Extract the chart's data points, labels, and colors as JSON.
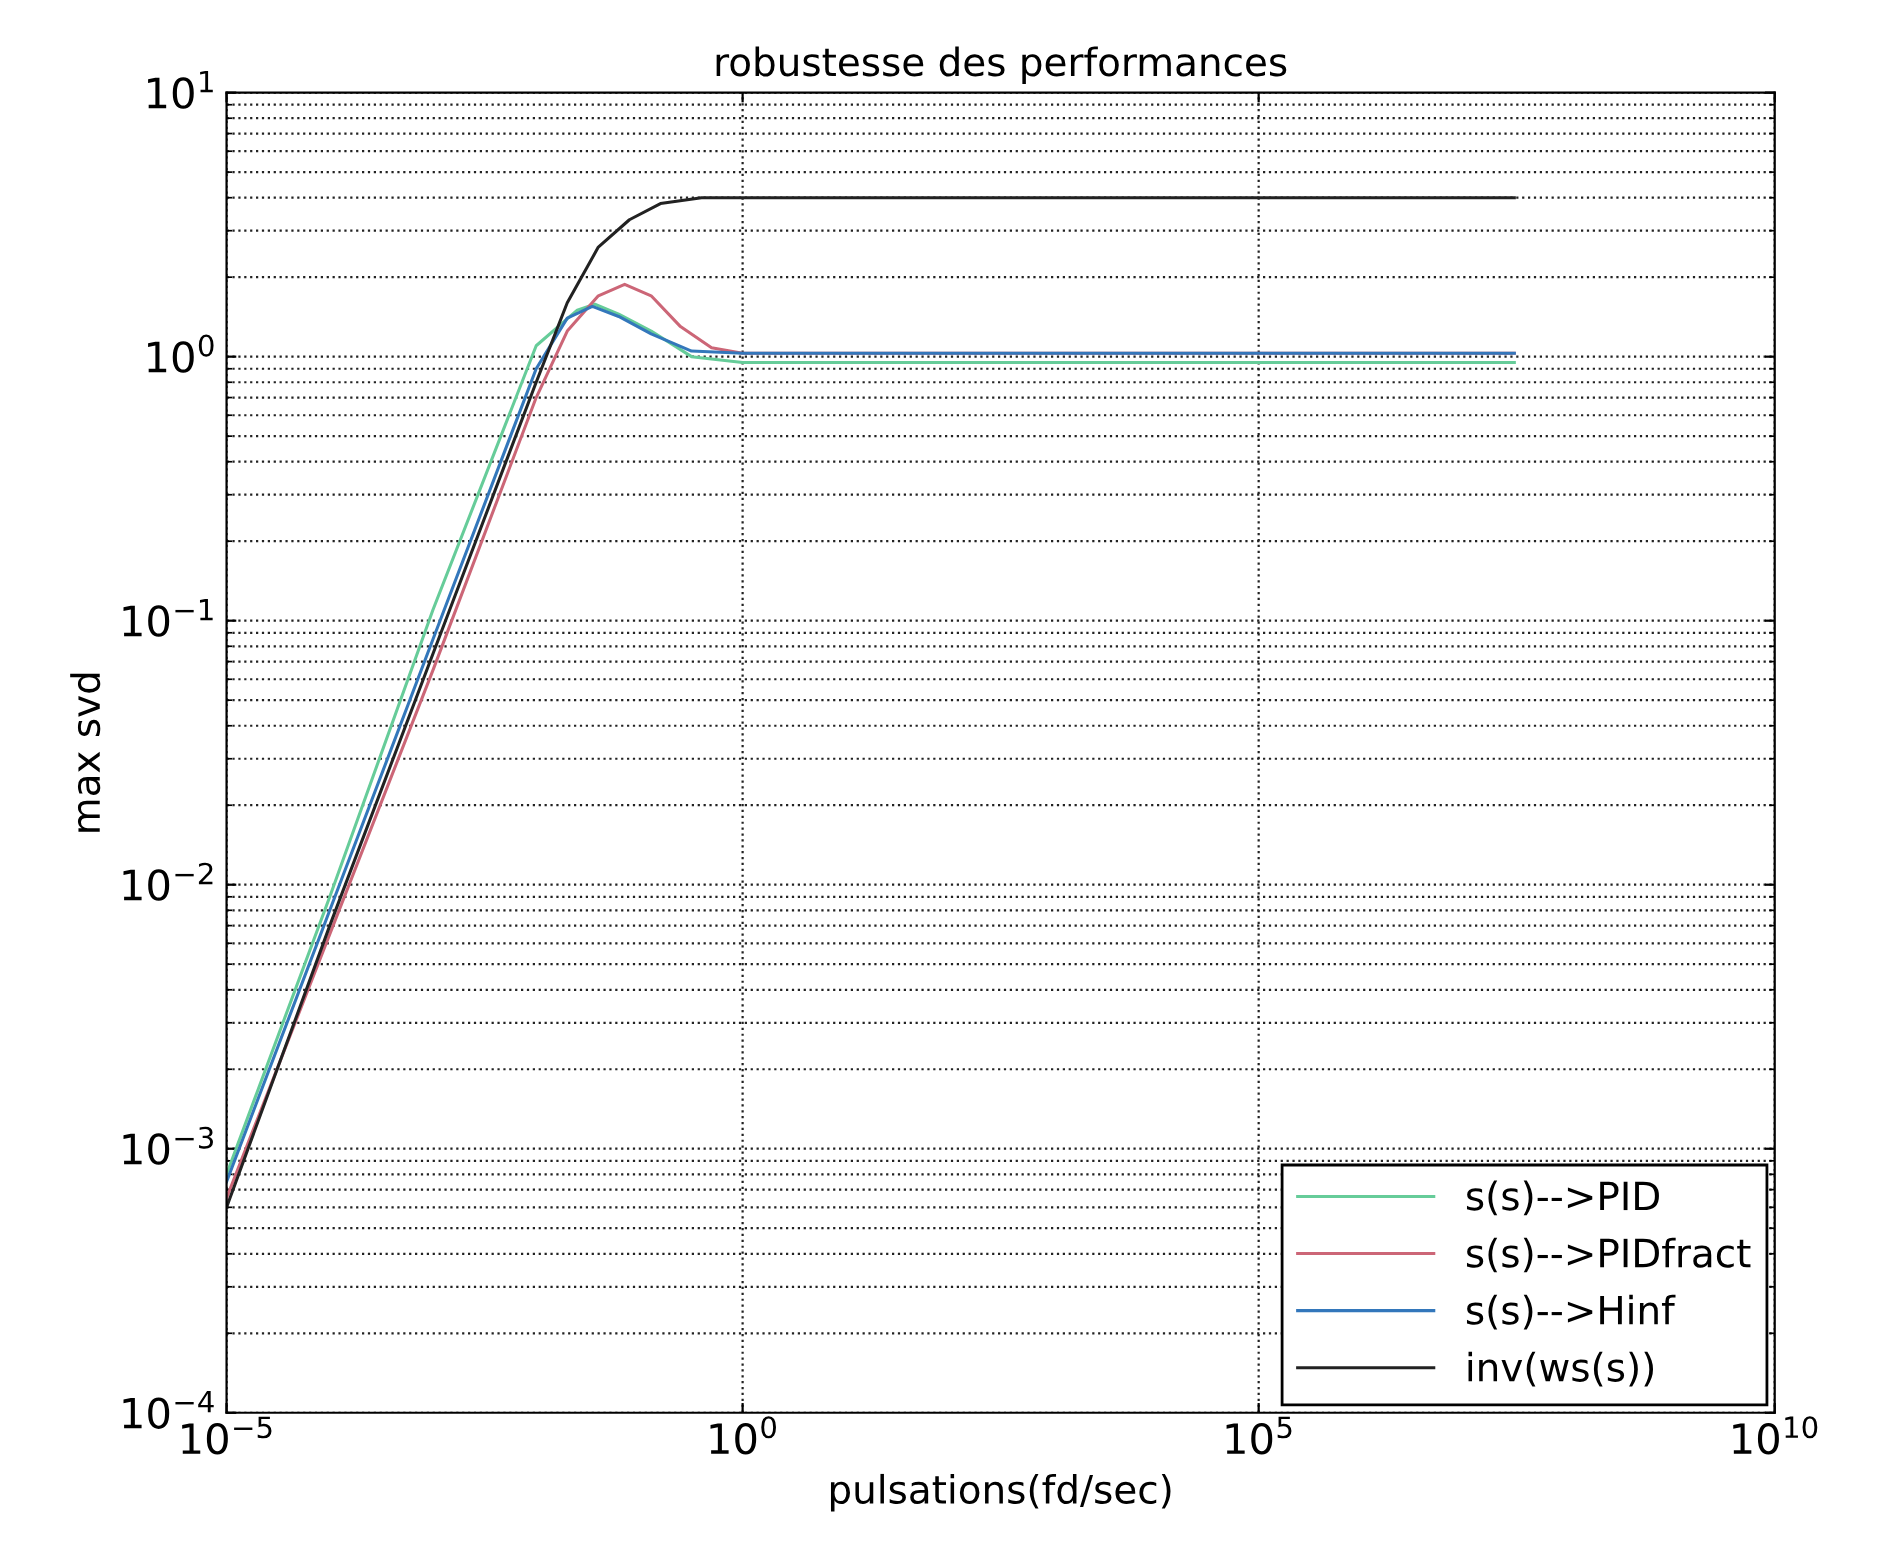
{
  "chart_data": {
    "type": "line",
    "title": "robustesse des performances",
    "xlabel": "pulsations(fd/sec)",
    "ylabel": "max svd",
    "log": "xy",
    "grid": true,
    "legend": "bottom right",
    "line_style": "solid",
    "marker": "none",
    "xlim": [
      1e-05,
      10000000000
    ],
    "ylim": [
      0.0001,
      10
    ],
    "xticks": [
      {
        "value": 1e-05,
        "label": "10$^{−5}$"
      },
      {
        "value": 1,
        "label": "10$^{0}$"
      },
      {
        "value": 100000,
        "label": "10$^{5}$"
      },
      {
        "value": 10000000000,
        "label": "10$^{10}$"
      }
    ],
    "yticks": [
      {
        "value": 0.0001,
        "label": "10$^{−4}$"
      },
      {
        "value": 0.001,
        "label": "10$^{−3}$"
      },
      {
        "value": 0.01,
        "label": "10$^{−2}$"
      },
      {
        "value": 0.1,
        "label": "10$^{−1}$"
      },
      {
        "value": 1,
        "label": "10$^{0}$"
      },
      {
        "value": 10,
        "label": "10$^{1}$"
      }
    ],
    "series": [
      {
        "name": "s(s)-->PID",
        "color": "#66cc99",
        "x": [
          1e-05,
          0.0001,
          0.001,
          0.01,
          0.025,
          0.037,
          0.063,
          0.13,
          0.32,
          1,
          30000000
        ],
        "values": [
          0.0008,
          0.009,
          0.11,
          1.1,
          1.5,
          1.58,
          1.45,
          1.25,
          1.0,
          0.95,
          0.95
        ]
      },
      {
        "name": "s(s)-->PIDfract",
        "color": "#cc6677",
        "x": [
          1e-05,
          0.0001,
          0.001,
          0.01,
          0.02,
          0.04,
          0.072,
          0.13,
          0.25,
          0.5,
          1,
          30000000
        ],
        "values": [
          0.00065,
          0.0065,
          0.065,
          0.7,
          1.25,
          1.7,
          1.88,
          1.7,
          1.3,
          1.08,
          1.03,
          1.03
        ]
      },
      {
        "name": "s(s)-->Hinf",
        "color": "#3377bb",
        "x": [
          1e-05,
          0.0001,
          0.001,
          0.01,
          0.02,
          0.035,
          0.063,
          0.13,
          0.32,
          1,
          30000000
        ],
        "values": [
          0.00075,
          0.008,
          0.085,
          0.9,
          1.4,
          1.55,
          1.42,
          1.22,
          1.05,
          1.03,
          1.03
        ]
      },
      {
        "name": "inv(ws(s))",
        "color": "#222222",
        "x": [
          1e-05,
          0.0001,
          0.001,
          0.01,
          0.02,
          0.04,
          0.08,
          0.16,
          0.4,
          1,
          30000000
        ],
        "values": [
          0.0006,
          0.007,
          0.075,
          0.8,
          1.6,
          2.6,
          3.3,
          3.8,
          4.0,
          4.0,
          4.0
        ]
      }
    ]
  }
}
